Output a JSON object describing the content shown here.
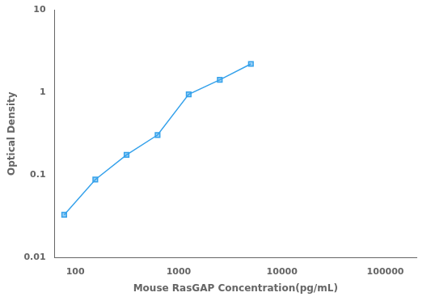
{
  "chart_data": {
    "type": "line",
    "x": [
      78,
      156,
      313,
      625,
      1250,
      2500,
      5000
    ],
    "values": [
      0.033,
      0.088,
      0.175,
      0.305,
      0.946,
      1.42,
      2.21
    ],
    "xlabel": "Mouse RasGAP Concentration(pg/mL)",
    "ylabel": "Optical Density",
    "xlim": [
      63,
      200000
    ],
    "ylim": [
      0.01,
      10
    ],
    "xticks": [
      100,
      1000,
      10000,
      100000
    ],
    "yticks": [
      0.01,
      0.1,
      1,
      10
    ],
    "log": true,
    "grid": false,
    "marker": "square"
  }
}
